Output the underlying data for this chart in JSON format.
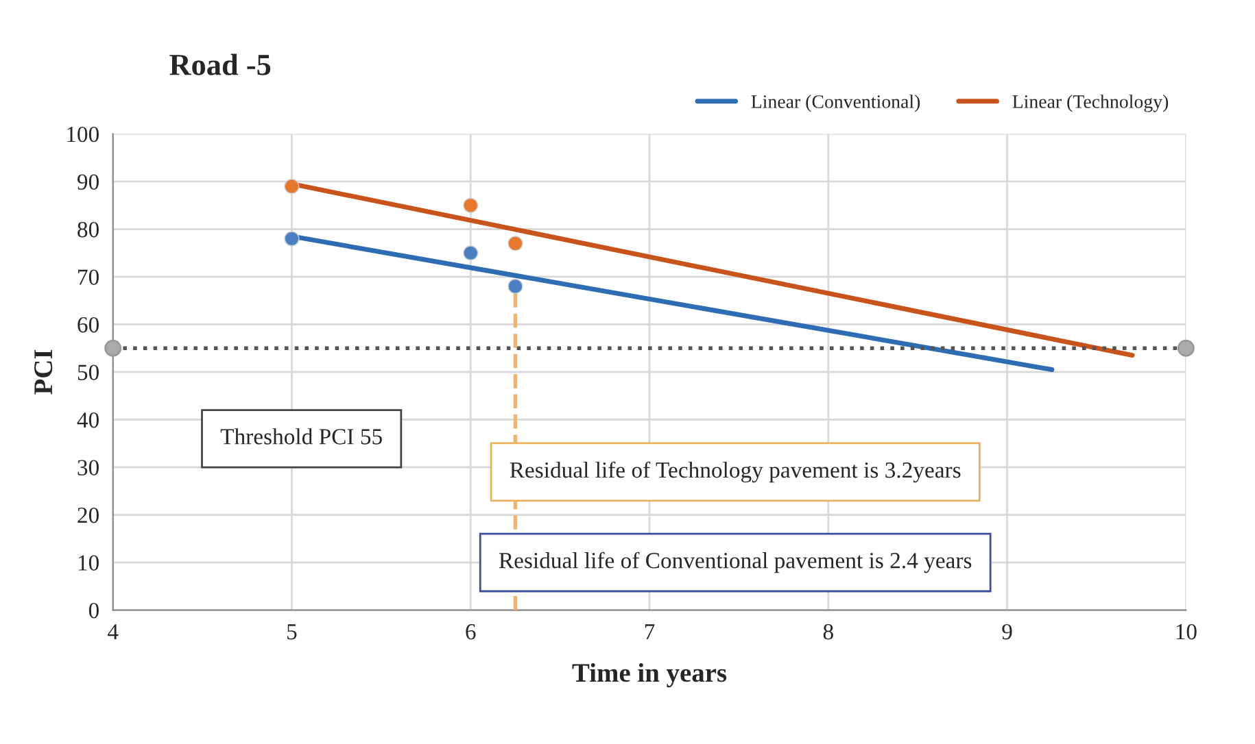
{
  "chart_data": {
    "type": "scatter",
    "title": "Road -5",
    "xlabel": "Time in years",
    "ylabel": "PCI",
    "xlim": [
      4,
      10
    ],
    "xticks": [
      4,
      5,
      6,
      7,
      8,
      9,
      10
    ],
    "ylim": [
      0,
      100
    ],
    "yticks": [
      0,
      10,
      20,
      30,
      40,
      50,
      60,
      70,
      80,
      90,
      100
    ],
    "grid": true,
    "legend": "top right",
    "series": [
      {
        "color": "#4a7fc1",
        "x": [
          5,
          6,
          6.25
        ],
        "values": [
          78,
          75,
          68
        ],
        "marker": "circle"
      },
      {
        "color": "#e8772e",
        "x": [
          5,
          6,
          6.25
        ],
        "values": [
          89,
          85,
          77
        ],
        "marker": "circle"
      },
      {
        "type": "line",
        "name": "Linear (Conventional)",
        "color": "#2e6db4",
        "x": [
          5,
          9.25
        ],
        "values": [
          78.5,
          50.5
        ],
        "marker": "none",
        "line_style": "solid"
      },
      {
        "type": "line",
        "name": "Linear (Technology)",
        "color": "#c8531b",
        "x": [
          5,
          9.7
        ],
        "values": [
          89.5,
          53.5
        ],
        "marker": "none",
        "line_style": "solid"
      },
      {
        "type": "line",
        "color": "#555555",
        "x": [
          4,
          10
        ],
        "values": [
          55,
          55
        ],
        "marker": "circle",
        "line_style": "dotted"
      },
      {
        "type": "line",
        "color": "#f0b46a",
        "x": [
          6.25,
          6.25
        ],
        "values": [
          0,
          68
        ],
        "marker": "none",
        "line_style": "dashed"
      }
    ],
    "annotations": [
      "Threshold PCI 55",
      "Residual life of Technology pavement is 3.2years",
      "Residual life of Conventional pavement is 2.4 years"
    ]
  }
}
